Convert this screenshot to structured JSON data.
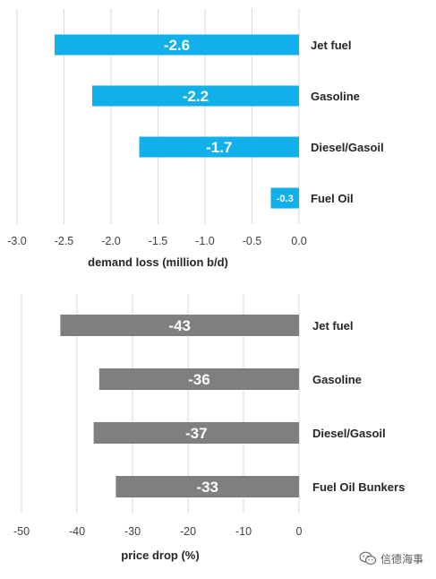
{
  "chart_data": [
    {
      "type": "bar",
      "orientation": "horizontal",
      "categories": [
        "Jet fuel",
        "Gasoline",
        "Diesel/Gasoil",
        "Fuel Oil"
      ],
      "values": [
        -2.6,
        -2.2,
        -1.7,
        -0.3
      ],
      "data_labels": [
        "-2.6",
        "-2.2",
        "-1.7",
        "-0.3"
      ],
      "xlabel": "demand loss (million b/d)",
      "xlim": [
        -3.0,
        0.0
      ],
      "xticks": [
        -3.0,
        -2.5,
        -2.0,
        -1.5,
        -1.0,
        -0.5,
        0.0
      ],
      "xtick_labels": [
        "-3.0",
        "-2.5",
        "-2.0",
        "-1.5",
        "-1.0",
        "-0.5",
        "0.0"
      ],
      "grid": "vertical",
      "category_labels_position": "right",
      "bar_color": "#11b0ea"
    },
    {
      "type": "bar",
      "orientation": "horizontal",
      "categories": [
        "Jet fuel",
        "Gasoline",
        "Diesel/Gasoil",
        "Fuel Oil Bunkers"
      ],
      "values": [
        -43,
        -36,
        -37,
        -33
      ],
      "data_labels": [
        "-43",
        "-36",
        "-37",
        "-33"
      ],
      "xlabel": "price drop (%)",
      "xlim": [
        -50,
        0
      ],
      "xticks": [
        -50,
        -40,
        -30,
        -20,
        -10,
        0
      ],
      "xtick_labels": [
        "-50",
        "-40",
        "-30",
        "-20",
        "-10",
        "0"
      ],
      "grid": "vertical",
      "category_labels_position": "right",
      "bar_color": "#7f7f7f"
    }
  ],
  "watermark": {
    "text": "信德海事",
    "icon": "wechat-icon"
  },
  "colors": {
    "grid": "#d9d9d9",
    "tick_text": "#404040",
    "label_text": "#262626",
    "data_label_text": "#ffffff"
  }
}
